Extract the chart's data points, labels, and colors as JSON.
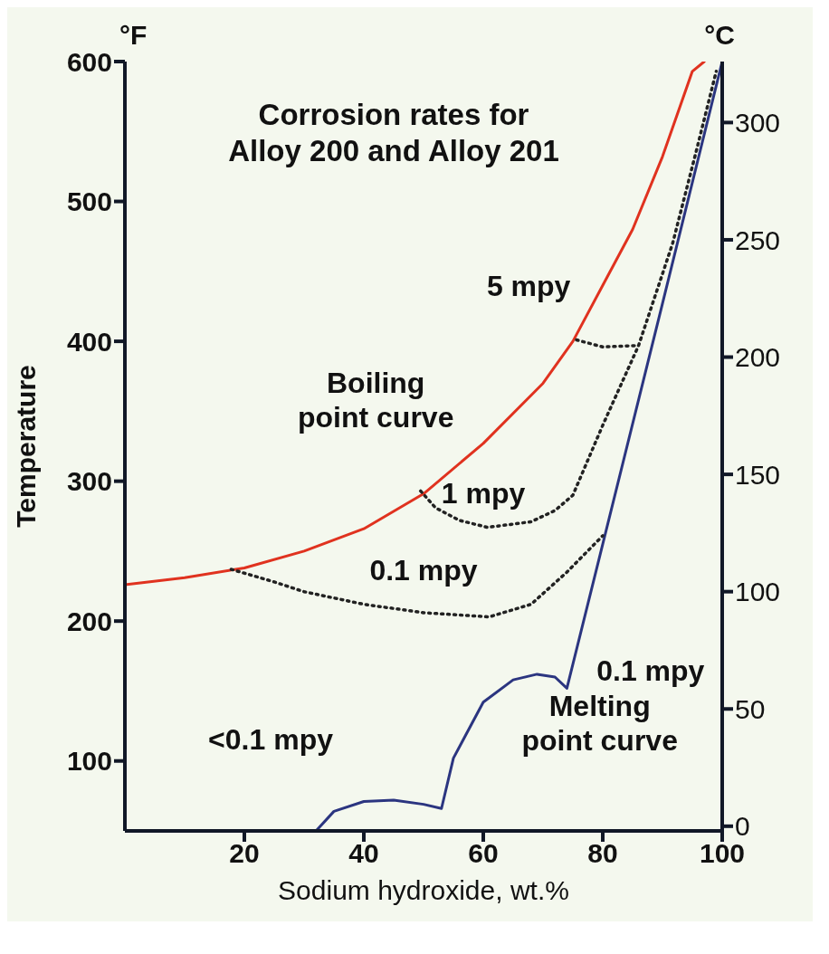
{
  "chart_data": {
    "type": "line",
    "title": "Corrosion rates for Alloy 200 and Alloy 201",
    "xlabel": "Sodium hydroxide, wt.%",
    "ylabel": "Temperature",
    "y2label": "°C",
    "xlim": [
      0,
      100
    ],
    "xticks": [
      20,
      40,
      60,
      80,
      100
    ],
    "ylim": [
      50,
      600
    ],
    "yticks": [
      100,
      200,
      300,
      400,
      500,
      600
    ],
    "y2lim": [
      -2,
      326
    ],
    "y2ticks": [
      0,
      50,
      100,
      150,
      200,
      250,
      300
    ],
    "marker": "none",
    "series": [
      {
        "color": "#e0321f",
        "line_style": "solid",
        "x": [
          0,
          10,
          20,
          30,
          40,
          50,
          60,
          70,
          75,
          80,
          85,
          90,
          95,
          97
        ],
        "values": [
          226,
          231,
          238,
          250,
          266,
          291,
          327,
          370,
          400,
          440,
          480,
          532,
          593,
          600
        ]
      },
      {
        "color": "#2b3580",
        "line_style": "solid",
        "x": [
          32,
          35,
          40,
          45,
          50,
          53,
          55,
          60,
          65,
          69,
          72,
          74,
          80,
          90,
          100
        ],
        "values": [
          50,
          64,
          71,
          72,
          69,
          66,
          102,
          142,
          158,
          162,
          160,
          152,
          255,
          427,
          600
        ]
      },
      {
        "color": "#222222",
        "line_style": "dotted",
        "x": [
          17.8,
          25,
          30,
          40,
          50,
          61,
          68,
          74,
          80
        ],
        "values": [
          237,
          228,
          221,
          212,
          206,
          203,
          212,
          235,
          261
        ]
      },
      {
        "color": "#222222",
        "line_style": "dotted",
        "x": [
          49.5,
          52,
          56,
          60.7,
          68,
          72,
          75,
          80,
          86,
          91.7,
          95.6,
          99
        ],
        "values": [
          293,
          281,
          272,
          267,
          271,
          279,
          290,
          340,
          397,
          470,
          535,
          593
        ]
      },
      {
        "color": "#222222",
        "line_style": "dotted",
        "x": [
          75.6,
          80,
          86
        ],
        "values": [
          401,
          396,
          397
        ]
      }
    ],
    "annotations": [
      "°F",
      "Boiling point curve",
      "Melting point curve",
      "5 mpy",
      "1 mpy",
      "0.1 mpy",
      "0.1 mpy",
      "<0.1 mpy"
    ]
  }
}
